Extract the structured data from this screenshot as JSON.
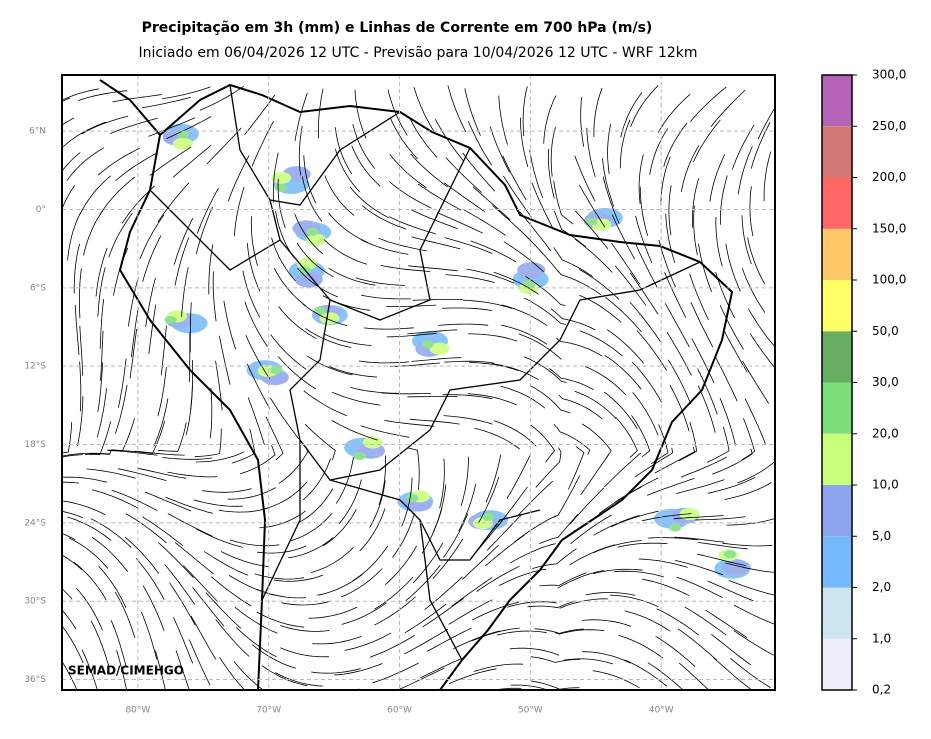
{
  "title": "Precipitação em 3h (mm) e Linhas de Corrente em 700 hPa (m/s)",
  "subtitle": "Iniciado em 06/04/2026 12 UTC - Previsão para 10/04/2026 12 UTC - WRF 12km",
  "credit": "SEMAD/CIMEHGO",
  "map": {
    "lonlim": [
      -85.8,
      -31.3
    ],
    "latlim": [
      10.3,
      -36.8
    ],
    "grid": true,
    "lonticks": [
      {
        "value": -80,
        "label": "80°W"
      },
      {
        "value": -70,
        "label": "70°W"
      },
      {
        "value": -60,
        "label": "60°W"
      },
      {
        "value": -50,
        "label": "50°W"
      },
      {
        "value": -40,
        "label": "40°W"
      }
    ],
    "latticks": [
      {
        "value": 6,
        "label": "6°N"
      },
      {
        "value": 0,
        "label": "0°"
      },
      {
        "value": -6,
        "label": "6°S"
      },
      {
        "value": -12,
        "label": "12°S"
      },
      {
        "value": -18,
        "label": "18°S"
      },
      {
        "value": -24,
        "label": "24°S"
      },
      {
        "value": -30,
        "label": "30°S"
      },
      {
        "value": -36,
        "label": "36°S"
      }
    ]
  },
  "colorbar": {
    "levels": [
      {
        "value": 0.2,
        "label": "0,2"
      },
      {
        "value": 1,
        "label": "1,0"
      },
      {
        "value": 2,
        "label": "2,0"
      },
      {
        "value": 5,
        "label": "5,0"
      },
      {
        "value": 10,
        "label": "10,0"
      },
      {
        "value": 20,
        "label": "20,0"
      },
      {
        "value": 30,
        "label": "30,0"
      },
      {
        "value": 50,
        "label": "50,0"
      },
      {
        "value": 100,
        "label": "100,0"
      },
      {
        "value": 150,
        "label": "150,0"
      },
      {
        "value": 200,
        "label": "200,0"
      },
      {
        "value": 250,
        "label": "250,0"
      },
      {
        "value": 300,
        "label": "300,0"
      }
    ],
    "colors": [
      "#eeeefa",
      "#cde5ee",
      "#74b9fb",
      "#8da4ee",
      "#c8ff7a",
      "#7ddf7a",
      "#67ae62",
      "#ffff66",
      "#ffc766",
      "#ff6666",
      "#d17a75",
      "#b463b8"
    ]
  }
}
